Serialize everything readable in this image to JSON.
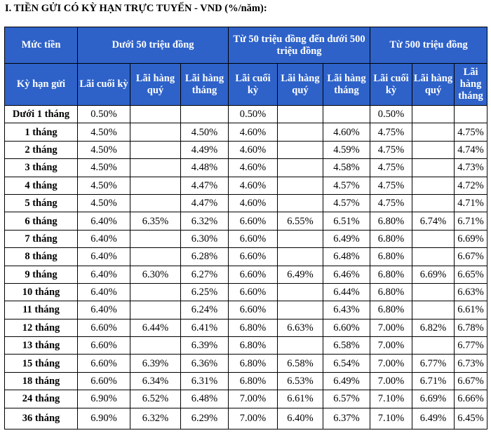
{
  "heading": "I. TIỀN GỬI CÓ KỲ HẠN TRỰC TUYẾN - VND (%/năm):",
  "header": {
    "amount_label": "Mức tiền",
    "term_label": "Kỳ hạn gửi",
    "groups": [
      "Dưới 50 triệu đồng",
      "Từ 50 triệu đồng đến dưới 500 triệu đồng",
      "Từ 500 triệu đồng"
    ],
    "sub": [
      "Lãi cuối kỳ",
      "Lãi hàng quý",
      "Lãi hàng tháng"
    ]
  },
  "rows": [
    {
      "term": "Dưới 1 tháng",
      "v": [
        "0.50%",
        "",
        "",
        "0.50%",
        "",
        "",
        "0.50%",
        "",
        ""
      ]
    },
    {
      "term": "1 tháng",
      "v": [
        "4.50%",
        "",
        "4.50%",
        "4.60%",
        "",
        "4.60%",
        "4.75%",
        "",
        "4.75%"
      ]
    },
    {
      "term": "2 tháng",
      "v": [
        "4.50%",
        "",
        "4.49%",
        "4.60%",
        "",
        "4.59%",
        "4.75%",
        "",
        "4.74%"
      ]
    },
    {
      "term": "3 tháng",
      "v": [
        "4.50%",
        "",
        "4.48%",
        "4.60%",
        "",
        "4.58%",
        "4.75%",
        "",
        "4.73%"
      ]
    },
    {
      "term": "4 tháng",
      "v": [
        "4.50%",
        "",
        "4.47%",
        "4.60%",
        "",
        "4.57%",
        "4.75%",
        "",
        "4.72%"
      ]
    },
    {
      "term": "5 tháng",
      "v": [
        "4.50%",
        "",
        "4.47%",
        "4.60%",
        "",
        "4.57%",
        "4.75%",
        "",
        "4.71%"
      ]
    },
    {
      "term": "6 tháng",
      "v": [
        "6.40%",
        "6.35%",
        "6.32%",
        "6.60%",
        "6.55%",
        "6.51%",
        "6.80%",
        "6.74%",
        "6.71%"
      ]
    },
    {
      "term": "7 tháng",
      "v": [
        "6.40%",
        "",
        "6.30%",
        "6.60%",
        "",
        "6.49%",
        "6.80%",
        "",
        "6.69%"
      ]
    },
    {
      "term": "8 tháng",
      "v": [
        "6.40%",
        "",
        "6.28%",
        "6.60%",
        "",
        "6.48%",
        "6.80%",
        "",
        "6.67%"
      ]
    },
    {
      "term": "9 tháng",
      "v": [
        "6.40%",
        "6.30%",
        "6.27%",
        "6.60%",
        "6.49%",
        "6.46%",
        "6.80%",
        "6.69%",
        "6.65%"
      ]
    },
    {
      "term": "10 tháng",
      "v": [
        "6.40%",
        "",
        "6.25%",
        "6.60%",
        "",
        "6.44%",
        "6.80%",
        "",
        "6.63%"
      ]
    },
    {
      "term": "11 tháng",
      "v": [
        "6.40%",
        "",
        "6.24%",
        "6.60%",
        "",
        "6.43%",
        "6.80%",
        "",
        "6.61%"
      ]
    },
    {
      "term": "12 tháng",
      "v": [
        "6.60%",
        "6.44%",
        "6.41%",
        "6.80%",
        "6.63%",
        "6.60%",
        "7.00%",
        "6.82%",
        "6.78%"
      ]
    },
    {
      "term": "13 tháng",
      "v": [
        "6.60%",
        "",
        "6.39%",
        "6.80%",
        "",
        "6.58%",
        "7.00%",
        "",
        "6.77%"
      ]
    },
    {
      "term": "15 tháng",
      "v": [
        "6.60%",
        "6.39%",
        "6.36%",
        "6.80%",
        "6.58%",
        "6.54%",
        "7.00%",
        "6.77%",
        "6.73%"
      ]
    },
    {
      "term": "18 tháng",
      "v": [
        "6.60%",
        "6.34%",
        "6.31%",
        "6.80%",
        "6.53%",
        "6.49%",
        "7.00%",
        "6.71%",
        "6.67%"
      ]
    },
    {
      "term": "24 tháng",
      "v": [
        "6.90%",
        "6.52%",
        "6.48%",
        "7.00%",
        "6.61%",
        "6.57%",
        "7.10%",
        "6.69%",
        "6.66%"
      ]
    },
    {
      "term": "36 tháng",
      "v": [
        "6.90%",
        "6.32%",
        "6.29%",
        "7.00%",
        "6.40%",
        "6.37%",
        "7.10%",
        "6.49%",
        "6.45%"
      ]
    }
  ]
}
